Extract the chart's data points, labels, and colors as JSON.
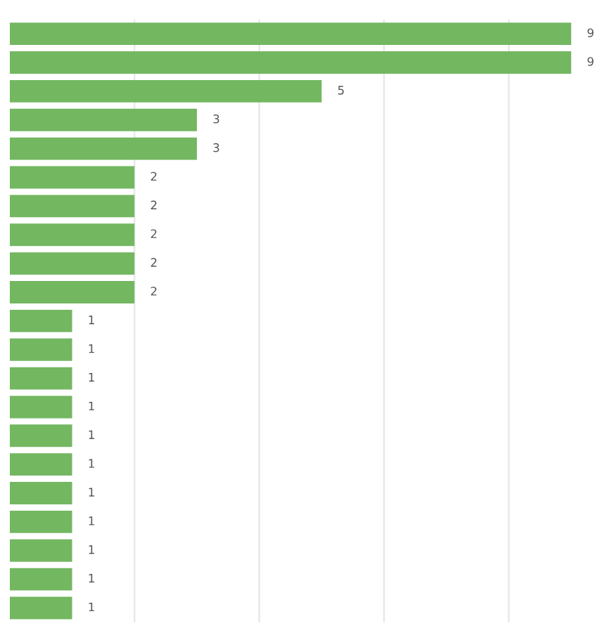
{
  "chart_data": {
    "type": "bar",
    "orientation": "horizontal",
    "categories": [
      null,
      null,
      null,
      null,
      null,
      null,
      null,
      null,
      null,
      null,
      null,
      null,
      null,
      null,
      null,
      null,
      null,
      null,
      null,
      null,
      null
    ],
    "values": [
      9,
      9,
      5,
      3,
      3,
      2,
      2,
      2,
      2,
      2,
      1,
      1,
      1,
      1,
      1,
      1,
      1,
      1,
      1,
      1,
      1
    ],
    "color": "#73b761",
    "xticks": [
      {
        "value": 2,
        "label": null
      },
      {
        "value": 4,
        "label": null
      },
      {
        "value": 6,
        "label": null
      },
      {
        "value": 8,
        "label": null
      }
    ],
    "grid": "x",
    "data_labels": true
  }
}
